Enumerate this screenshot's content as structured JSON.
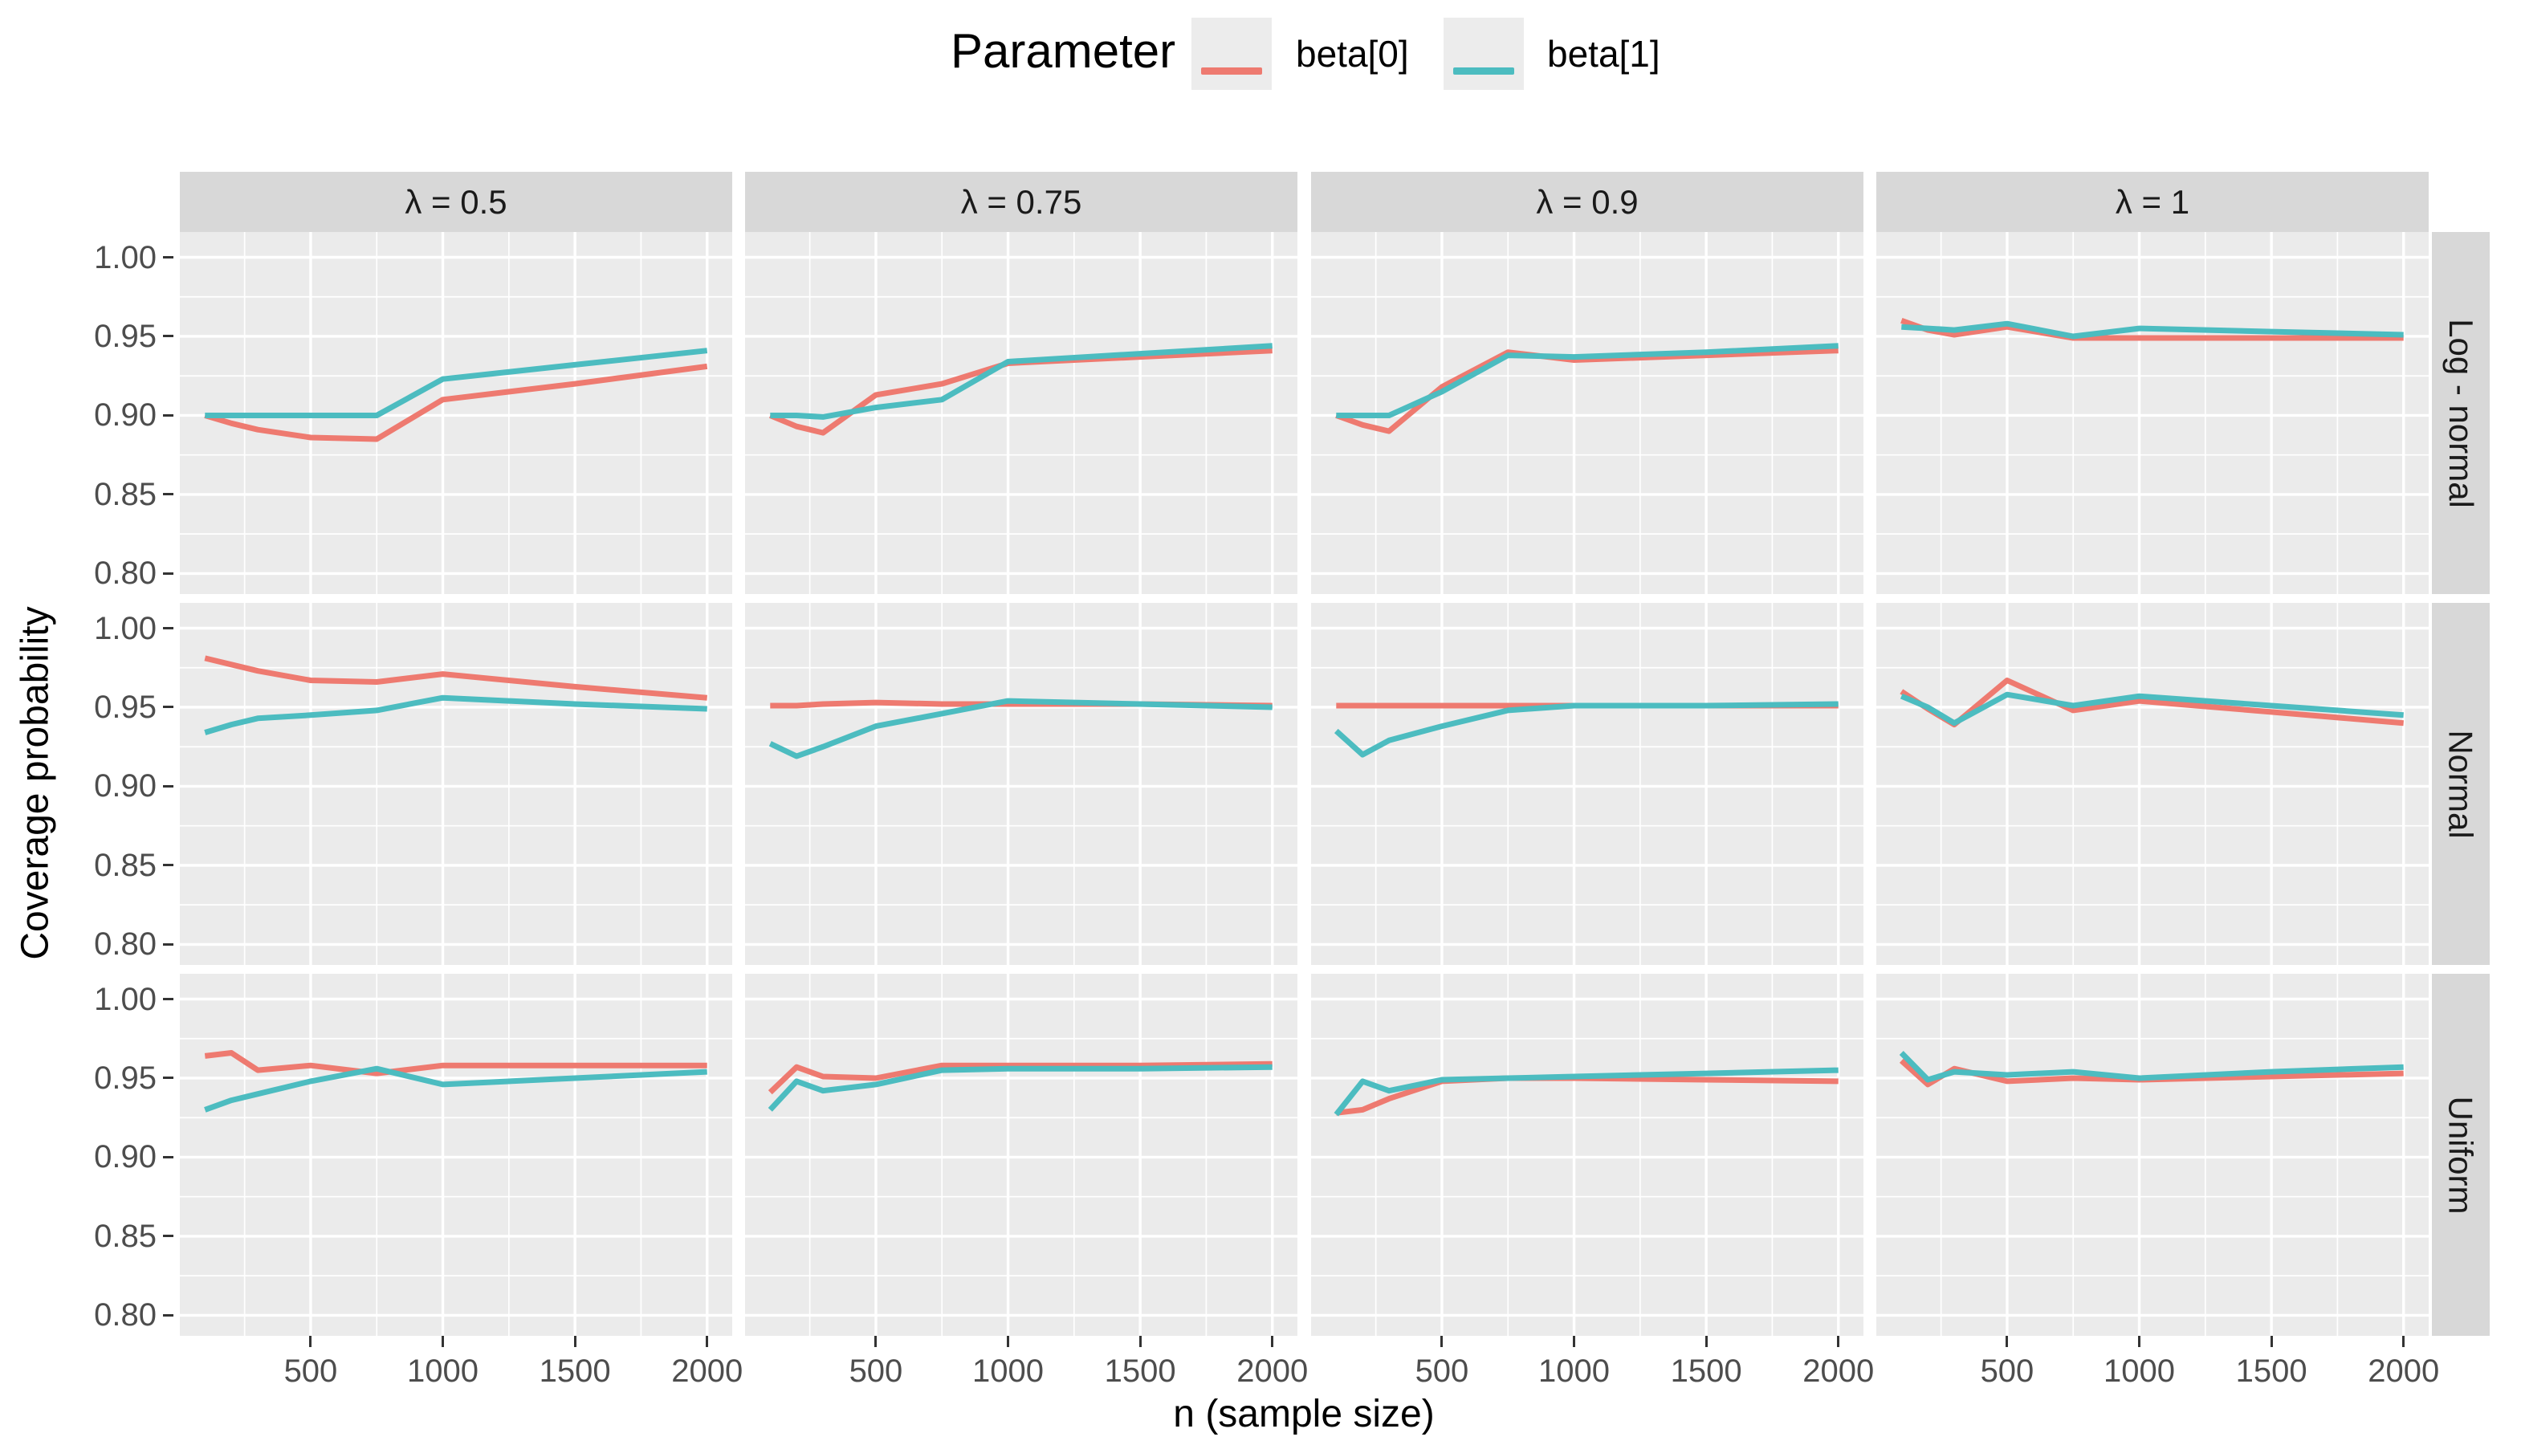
{
  "legend": {
    "title": "Parameter",
    "items": [
      {
        "label": "beta[0]",
        "color": "#EE7A70"
      },
      {
        "label": "beta[1]",
        "color": "#4CBCC0"
      }
    ]
  },
  "axes": {
    "x_title": "n (sample size)",
    "y_title": "Coverage probability",
    "x_tick_labels": [
      "500",
      "1000",
      "1500",
      "2000"
    ],
    "y_tick_labels": [
      "1.00",
      "0.95",
      "0.90",
      "0.85",
      "0.80"
    ]
  },
  "chart_data": {
    "type": "line",
    "facet": {
      "col_variable": "lambda",
      "col_labels": [
        "λ = 0.5",
        "λ = 0.75",
        "λ = 0.9",
        "λ = 1"
      ],
      "row_labels": [
        "Log - normal",
        "Normal",
        "Uniform"
      ]
    },
    "x": [
      100,
      200,
      300,
      500,
      750,
      1000,
      1500,
      2000
    ],
    "x_major_ticks": [
      500,
      1000,
      1500,
      2000
    ],
    "x_minor_ticks": [
      250,
      750,
      1250,
      1750
    ],
    "y_major_ticks": [
      1.0,
      0.95,
      0.9,
      0.85,
      0.8
    ],
    "y_minor_ticks": [
      0.975,
      0.925,
      0.875,
      0.825
    ],
    "xlim": [
      5,
      2095
    ],
    "ylim": [
      0.787,
      1.016
    ],
    "xlabel": "n (sample size)",
    "ylabel": "Coverage probability",
    "legend_position": "top",
    "grid": true,
    "series_names": [
      "beta[0]",
      "beta[1]"
    ],
    "series_colors": [
      "#EE7A70",
      "#4CBCC0"
    ],
    "panels": [
      {
        "row": "Log - normal",
        "col": "λ = 0.5",
        "beta0": [
          0.9,
          0.895,
          0.891,
          0.886,
          0.885,
          0.91,
          0.92,
          0.931
        ],
        "beta1": [
          0.9,
          0.9,
          0.9,
          0.9,
          0.9,
          0.923,
          0.932,
          0.941
        ]
      },
      {
        "row": "Log - normal",
        "col": "λ = 0.75",
        "beta0": [
          0.9,
          0.893,
          0.889,
          0.913,
          0.92,
          0.933,
          0.937,
          0.941
        ],
        "beta1": [
          0.9,
          0.9,
          0.899,
          0.905,
          0.91,
          0.934,
          0.939,
          0.944
        ]
      },
      {
        "row": "Log - normal",
        "col": "λ = 0.9",
        "beta0": [
          0.9,
          0.894,
          0.89,
          0.918,
          0.94,
          0.935,
          0.938,
          0.941
        ],
        "beta1": [
          0.9,
          0.9,
          0.9,
          0.915,
          0.938,
          0.937,
          0.94,
          0.944
        ]
      },
      {
        "row": "Log - normal",
        "col": "λ = 1",
        "beta0": [
          0.96,
          0.954,
          0.951,
          0.956,
          0.949,
          0.949,
          0.949,
          0.949
        ],
        "beta1": [
          0.956,
          0.955,
          0.954,
          0.958,
          0.95,
          0.955,
          0.953,
          0.951
        ]
      },
      {
        "row": "Normal",
        "col": "λ = 0.5",
        "beta0": [
          0.981,
          0.977,
          0.973,
          0.967,
          0.966,
          0.971,
          0.963,
          0.956
        ],
        "beta1": [
          0.934,
          0.939,
          0.943,
          0.945,
          0.948,
          0.956,
          0.952,
          0.949
        ]
      },
      {
        "row": "Normal",
        "col": "λ = 0.75",
        "beta0": [
          0.951,
          0.951,
          0.952,
          0.953,
          0.952,
          0.952,
          0.952,
          0.951
        ],
        "beta1": [
          0.927,
          0.919,
          0.925,
          0.938,
          0.946,
          0.954,
          0.952,
          0.95
        ]
      },
      {
        "row": "Normal",
        "col": "λ = 0.9",
        "beta0": [
          0.951,
          0.951,
          0.951,
          0.951,
          0.951,
          0.951,
          0.951,
          0.951
        ],
        "beta1": [
          0.935,
          0.92,
          0.929,
          0.938,
          0.948,
          0.951,
          0.951,
          0.952
        ]
      },
      {
        "row": "Normal",
        "col": "λ = 1",
        "beta0": [
          0.96,
          0.949,
          0.939,
          0.967,
          0.948,
          0.954,
          0.947,
          0.94
        ],
        "beta1": [
          0.957,
          0.95,
          0.94,
          0.958,
          0.951,
          0.957,
          0.951,
          0.945
        ]
      },
      {
        "row": "Uniform",
        "col": "λ = 0.5",
        "beta0": [
          0.964,
          0.966,
          0.955,
          0.958,
          0.953,
          0.958,
          0.958,
          0.958
        ],
        "beta1": [
          0.93,
          0.936,
          0.94,
          0.948,
          0.956,
          0.946,
          0.95,
          0.954
        ]
      },
      {
        "row": "Uniform",
        "col": "λ = 0.75",
        "beta0": [
          0.941,
          0.957,
          0.951,
          0.95,
          0.958,
          0.958,
          0.958,
          0.959
        ],
        "beta1": [
          0.93,
          0.948,
          0.942,
          0.946,
          0.955,
          0.956,
          0.956,
          0.957
        ]
      },
      {
        "row": "Uniform",
        "col": "λ = 0.9",
        "beta0": [
          0.928,
          0.93,
          0.937,
          0.948,
          0.95,
          0.95,
          0.949,
          0.948
        ],
        "beta1": [
          0.927,
          0.948,
          0.942,
          0.949,
          0.95,
          0.951,
          0.953,
          0.955
        ]
      },
      {
        "row": "Uniform",
        "col": "λ = 1",
        "beta0": [
          0.961,
          0.946,
          0.956,
          0.948,
          0.95,
          0.949,
          0.951,
          0.953
        ],
        "beta1": [
          0.966,
          0.949,
          0.954,
          0.952,
          0.954,
          0.95,
          0.954,
          0.957
        ]
      }
    ]
  },
  "style": {
    "panel_bg": "#EBEBEB",
    "strip_bg": "#D8D8D8",
    "grid_color": "#FFFFFF",
    "tick_color": "#333333",
    "tick_label_color": "#4D4D4D"
  }
}
